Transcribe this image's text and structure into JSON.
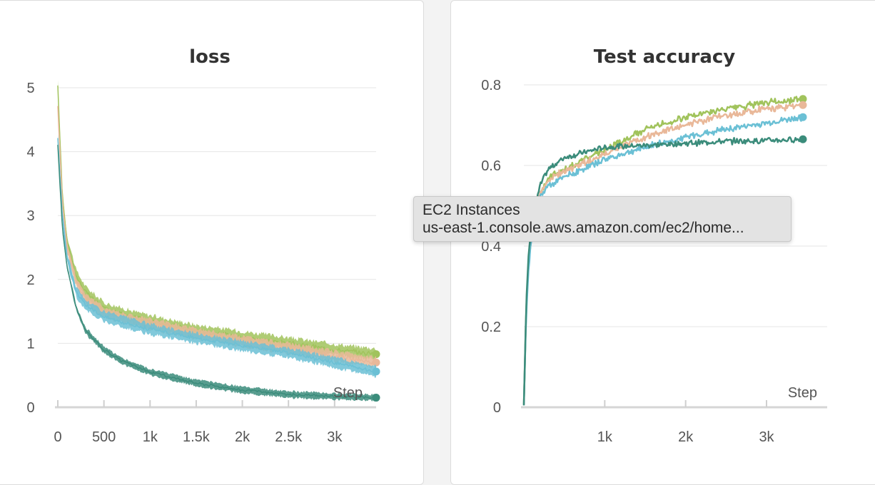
{
  "tooltip": {
    "title": "EC2 Instances",
    "url": "us-east-1.console.aws.amazon.com/ec2/home..."
  },
  "colors": {
    "green": "#a1c35c",
    "peach": "#e9b899",
    "blue": "#6bc0d5",
    "teal": "#3b8c7b"
  },
  "chart_data": [
    {
      "type": "line",
      "title": "loss",
      "xlabel": "Step",
      "ylabel": "",
      "xlim": [
        0,
        3450
      ],
      "ylim": [
        0,
        5
      ],
      "x_ticks": [
        0,
        500,
        1000,
        1500,
        2000,
        2500,
        3000
      ],
      "x_tick_labels": [
        "0",
        "500",
        "1k",
        "1.5k",
        "2k",
        "2.5k",
        "3k"
      ],
      "y_ticks": [
        0,
        1,
        2,
        3,
        4,
        5
      ],
      "y_tick_labels": [
        "0",
        "1",
        "2",
        "3",
        "4",
        "5"
      ],
      "grid": true,
      "series": [
        {
          "color": "#a1c35c",
          "noise": 0.09,
          "x": [
            0,
            50,
            100,
            200,
            300,
            500,
            800,
            1000,
            1500,
            2000,
            2500,
            3000,
            3450
          ],
          "values": [
            5.0,
            3.3,
            2.6,
            2.05,
            1.8,
            1.55,
            1.42,
            1.35,
            1.2,
            1.1,
            1.0,
            0.9,
            0.83
          ]
        },
        {
          "color": "#e9b899",
          "noise": 0.08,
          "x": [
            0,
            50,
            100,
            200,
            300,
            500,
            800,
            1000,
            1500,
            2000,
            2500,
            3000,
            3450
          ],
          "values": [
            4.7,
            3.2,
            2.5,
            1.95,
            1.7,
            1.48,
            1.36,
            1.3,
            1.15,
            1.03,
            0.92,
            0.8,
            0.7
          ]
        },
        {
          "color": "#6bc0d5",
          "noise": 0.08,
          "x": [
            0,
            50,
            100,
            200,
            300,
            500,
            800,
            1000,
            1500,
            2000,
            2500,
            3000,
            3450
          ],
          "values": [
            4.2,
            3.0,
            2.35,
            1.8,
            1.6,
            1.42,
            1.3,
            1.22,
            1.08,
            0.96,
            0.85,
            0.7,
            0.56
          ]
        },
        {
          "color": "#3b8c7b",
          "noise": 0.05,
          "x": [
            0,
            50,
            100,
            200,
            300,
            500,
            700,
            1000,
            1500,
            2000,
            2500,
            3000,
            3450
          ],
          "values": [
            4.1,
            2.8,
            2.2,
            1.55,
            1.2,
            0.9,
            0.72,
            0.55,
            0.38,
            0.27,
            0.2,
            0.17,
            0.15
          ]
        }
      ]
    },
    {
      "type": "line",
      "title": "Test accuracy",
      "xlabel": "Step",
      "ylabel": "",
      "xlim": [
        0,
        3750
      ],
      "ylim": [
        0,
        0.8
      ],
      "x_ticks": [
        1000,
        2000,
        3000
      ],
      "x_tick_labels": [
        "1k",
        "2k",
        "3k"
      ],
      "y_ticks": [
        0,
        0.2,
        0.4,
        0.6,
        0.8
      ],
      "y_tick_labels": [
        "0",
        "0.2",
        "0.4",
        "0.6",
        "0.8"
      ],
      "grid": true,
      "series": [
        {
          "color": "#a1c35c",
          "noise": 0.007,
          "x": [
            0,
            30,
            60,
            100,
            200,
            300,
            500,
            1000,
            1500,
            2000,
            2500,
            3000,
            3450
          ],
          "values": [
            0.01,
            0.25,
            0.36,
            0.44,
            0.53,
            0.57,
            0.59,
            0.64,
            0.69,
            0.72,
            0.74,
            0.755,
            0.765
          ]
        },
        {
          "color": "#e9b899",
          "noise": 0.007,
          "x": [
            0,
            30,
            60,
            100,
            200,
            300,
            500,
            1000,
            1500,
            2000,
            2500,
            3000,
            3450
          ],
          "values": [
            0.01,
            0.25,
            0.36,
            0.44,
            0.53,
            0.565,
            0.585,
            0.63,
            0.67,
            0.7,
            0.725,
            0.74,
            0.75
          ]
        },
        {
          "color": "#6bc0d5",
          "noise": 0.007,
          "x": [
            0,
            30,
            60,
            100,
            200,
            300,
            500,
            1000,
            1500,
            2000,
            2500,
            3000,
            3450
          ],
          "values": [
            0.01,
            0.24,
            0.35,
            0.43,
            0.52,
            0.55,
            0.57,
            0.615,
            0.645,
            0.67,
            0.69,
            0.705,
            0.72
          ]
        },
        {
          "color": "#3b8c7b",
          "noise": 0.006,
          "x": [
            0,
            30,
            60,
            100,
            200,
            300,
            500,
            800,
            1000,
            1500,
            2000,
            2500,
            3000,
            3450
          ],
          "values": [
            0.01,
            0.26,
            0.38,
            0.46,
            0.55,
            0.59,
            0.62,
            0.635,
            0.645,
            0.65,
            0.655,
            0.66,
            0.662,
            0.665
          ]
        }
      ]
    }
  ]
}
